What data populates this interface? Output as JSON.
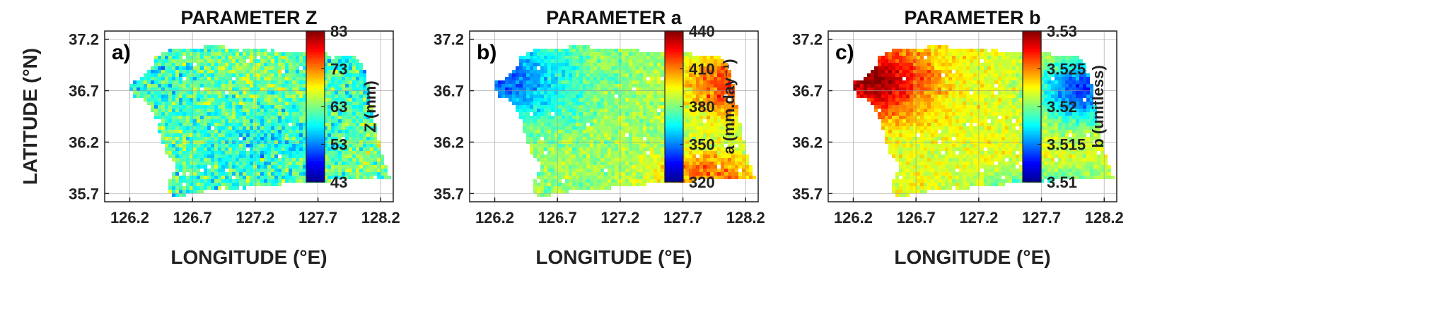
{
  "chart_data": [
    {
      "type": "heatmap",
      "panel_label": "a)",
      "title": "PARAMETER Z",
      "xlabel": "LONGITUDE (°E)",
      "ylabel": "LATITUDE (°N)",
      "xticks": [
        "126.2",
        "126.7",
        "127.2",
        "127.7",
        "128.2"
      ],
      "yticks": [
        "37.2",
        "36.7",
        "36.2",
        "35.7"
      ],
      "xlim": [
        126.0,
        128.3
      ],
      "ylim": [
        35.62,
        37.28
      ],
      "colorbar": {
        "label": "Z (mm)",
        "min": 43,
        "max": 83,
        "ticks": [
          "83",
          "73",
          "63",
          "53",
          "43"
        ]
      },
      "spatial_pattern": "noisy",
      "grid": true
    },
    {
      "type": "heatmap",
      "panel_label": "b)",
      "title": "PARAMETER a",
      "xlabel": "LONGITUDE (°E)",
      "ylabel": "",
      "xticks": [
        "126.2",
        "126.7",
        "127.2",
        "127.7",
        "128.2"
      ],
      "yticks": [
        "37.2",
        "36.7",
        "36.2",
        "35.7"
      ],
      "xlim": [
        126.0,
        128.3
      ],
      "ylim": [
        35.62,
        37.28
      ],
      "colorbar": {
        "label": "a (mm.day⁻¹)",
        "min": 320,
        "max": 440,
        "ticks": [
          "440",
          "410",
          "380",
          "350",
          "320"
        ]
      },
      "spatial_pattern": "low in northwest, high in east and southeast",
      "grid": true
    },
    {
      "type": "heatmap",
      "panel_label": "c)",
      "title": "PARAMETER b",
      "xlabel": "LONGITUDE (°E)",
      "ylabel": "",
      "xticks": [
        "126.2",
        "126.7",
        "127.2",
        "127.7",
        "128.2"
      ],
      "yticks": [
        "37.2",
        "36.7",
        "36.2",
        "35.7"
      ],
      "xlim": [
        126.0,
        128.3
      ],
      "ylim": [
        35.62,
        37.28
      ],
      "colorbar": {
        "label": "b (unitless)",
        "min": 3.51,
        "max": 3.53,
        "ticks": [
          "3.53",
          "3.525",
          "3.52",
          "3.515",
          "3.51"
        ]
      },
      "spatial_pattern": "high in northwest, low in east",
      "grid": true
    }
  ],
  "colormap": [
    "#00008f",
    "#0000ff",
    "#0080ff",
    "#00ffff",
    "#80ff80",
    "#ffff00",
    "#ff8000",
    "#ff0000",
    "#800000"
  ]
}
